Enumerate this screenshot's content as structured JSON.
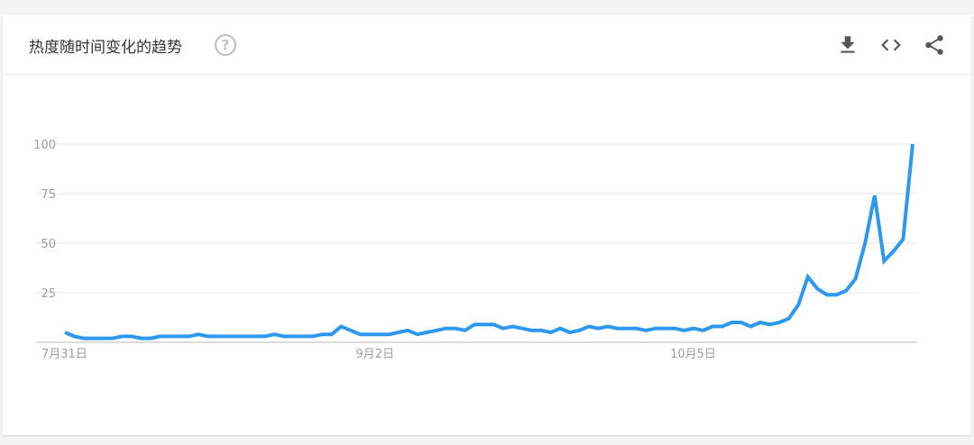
{
  "header": {
    "title": "热度随时间变化的趋势",
    "help_icon": "help-circle-icon",
    "actions": [
      "download-icon",
      "embed-code-icon",
      "share-icon"
    ]
  },
  "colors": {
    "line": "#2e97f0",
    "grid": "#e6e6e6",
    "axis": "#b8b8b8",
    "tick_text": "#9e9e9e"
  },
  "chart_data": {
    "type": "line",
    "title": "",
    "xlabel": "",
    "ylabel": "",
    "x_tick_labels": [
      {
        "label": "7月31日",
        "index": 0
      },
      {
        "label": "9月2日",
        "index": 33
      },
      {
        "label": "10月5日",
        "index": 66
      }
    ],
    "y_ticks": [
      0,
      25,
      50,
      75,
      100
    ],
    "y_tick_labels": [
      "25",
      "50",
      "75",
      "100"
    ],
    "ylim": [
      0,
      100
    ],
    "grid": true,
    "series": [
      {
        "values": [
          5,
          3,
          2,
          2,
          2,
          2,
          3,
          3,
          2,
          2,
          3,
          3,
          3,
          3,
          4,
          3,
          3,
          3,
          3,
          3,
          3,
          3,
          4,
          3,
          3,
          3,
          3,
          4,
          4,
          8,
          6,
          4,
          4,
          4,
          4,
          5,
          6,
          4,
          5,
          6,
          7,
          7,
          6,
          9,
          9,
          9,
          7,
          8,
          7,
          6,
          6,
          5,
          7,
          5,
          6,
          8,
          7,
          8,
          7,
          7,
          7,
          6,
          7,
          7,
          7,
          6,
          7,
          6,
          8,
          8,
          10,
          10,
          8,
          10,
          9,
          10,
          12,
          19,
          33,
          27,
          24,
          24,
          26,
          32,
          50,
          74,
          41,
          46,
          52,
          100
        ]
      }
    ]
  }
}
